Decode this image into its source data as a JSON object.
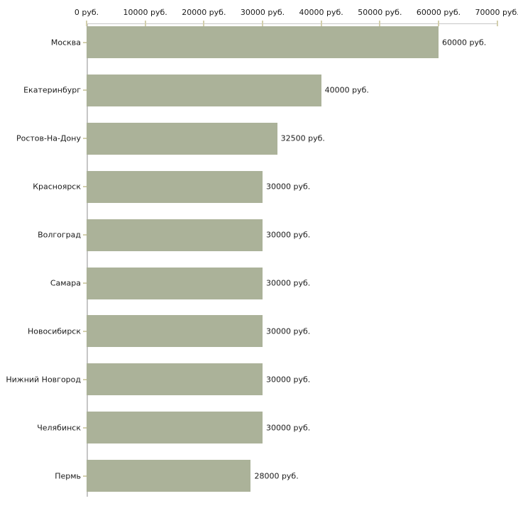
{
  "chart_data": {
    "type": "bar",
    "orientation": "horizontal",
    "title": "",
    "categories": [
      "Москва",
      "Екатеринбург",
      "Ростов-На-Дону",
      "Красноярск",
      "Волгоград",
      "Самара",
      "Новосибирск",
      "Нижний Новгород",
      "Челябинск",
      "Пермь"
    ],
    "values": [
      60000,
      40000,
      32500,
      30000,
      30000,
      30000,
      30000,
      30000,
      30000,
      28000
    ],
    "bar_value_labels": [
      "60000 руб.",
      "40000 руб.",
      "32500 руб.",
      "30000 руб.",
      "30000 руб.",
      "30000 руб.",
      "30000 руб.",
      "30000 руб.",
      "30000 руб.",
      "28000 руб."
    ],
    "x_axis": {
      "position": "top",
      "range": [
        0,
        70000
      ],
      "ticks": [
        0,
        10000,
        20000,
        30000,
        40000,
        50000,
        60000,
        70000
      ],
      "tick_labels": [
        "0 руб.",
        "10000 руб.",
        "20000 руб.",
        "30000 руб.",
        "40000 руб.",
        "50000 руб.",
        "60000 руб.",
        "70000 руб."
      ]
    },
    "unit": "руб.",
    "grid": false,
    "legend": false,
    "colors": {
      "bar": "#abb299",
      "axis_line": "#c6c6c6",
      "tick_mark": "#d3cfad",
      "text": "#1a1a1a",
      "background": "#ffffff"
    }
  }
}
